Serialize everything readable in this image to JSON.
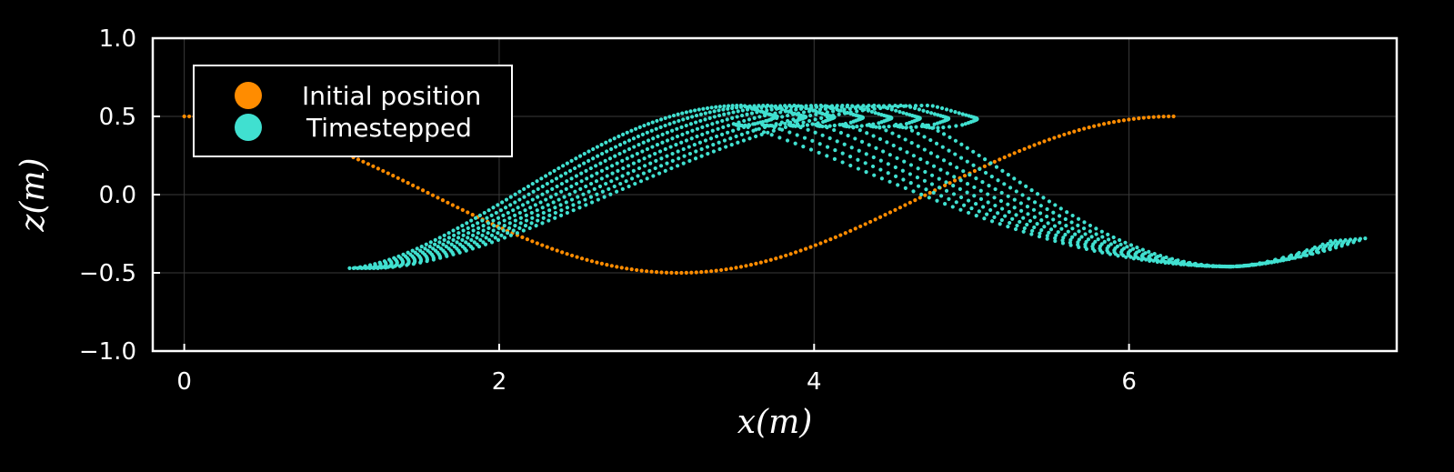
{
  "chart_data": {
    "type": "scatter",
    "title": "",
    "xlabel": "x(m)",
    "ylabel": "z(m)",
    "xlim": [
      -0.2,
      7.7
    ],
    "ylim": [
      -1.0,
      1.0
    ],
    "xticks": [
      0,
      2,
      4,
      6
    ],
    "yticks": [
      -1.0,
      -0.5,
      0.0,
      0.5,
      1.0
    ],
    "xtick_labels": [
      "0",
      "2",
      "4",
      "6"
    ],
    "ytick_labels": [
      "−1.0",
      "−0.5",
      "0.0",
      "0.5",
      "1.0"
    ],
    "grid": true,
    "legend_position": "top-left",
    "background": "#000000",
    "series": [
      {
        "name": "Initial position",
        "color": "#ff8c00",
        "marker": "circle",
        "curve": "z = 0.5*cos(x)",
        "x_range": [
          0,
          6.283
        ],
        "n_points": 200
      },
      {
        "name": "Timestepped",
        "color": "#40e0d0",
        "marker": "circle",
        "n_curves": 8,
        "n_points_per_curve": 200,
        "curves_x_range": [
          1.05,
          7.5
        ],
        "z_range": [
          -0.47,
          0.57
        ],
        "crest_x_positions": [
          3.55,
          3.72,
          3.89,
          4.06,
          4.23,
          4.4,
          4.57,
          4.74
        ],
        "trough_x": 6.65,
        "curl_tip": [
          5.0,
          0.4
        ]
      }
    ]
  }
}
